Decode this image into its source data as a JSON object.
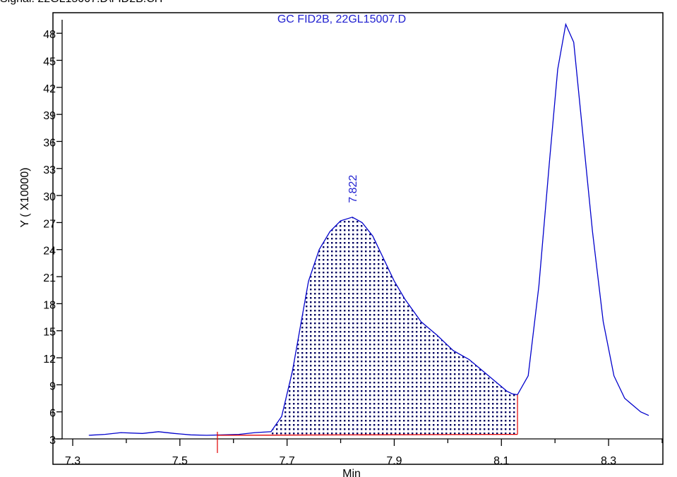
{
  "corner_text": "Signal: 22GL15007.D\\FID2B.CH",
  "chart_data": {
    "type": "line",
    "title": "GC FID2B, 22GL15007.D",
    "xlabel": "Min",
    "ylabel": "Y ( X10000)",
    "xlim": [
      7.3,
      8.4
    ],
    "ylim": [
      3,
      49.5
    ],
    "x_ticks": [
      7.3,
      7.5,
      7.7,
      7.9,
      8.1,
      8.3
    ],
    "x_tick_labels": [
      "7.3",
      "7.5",
      "7.7",
      "7.9",
      "8.1",
      "8.3"
    ],
    "y_ticks": [
      3,
      6,
      9,
      12,
      15,
      18,
      21,
      24,
      27,
      30,
      33,
      36,
      39,
      42,
      45,
      48
    ],
    "y_tick_labels": [
      "3",
      "6",
      "9",
      "12",
      "15",
      "18",
      "21",
      "24",
      "27",
      "30",
      "33",
      "36",
      "39",
      "42",
      "45",
      "48"
    ],
    "series": [
      {
        "x": [
          7.33,
          7.36,
          7.39,
          7.43,
          7.46,
          7.49,
          7.52,
          7.55,
          7.58,
          7.61,
          7.64,
          7.67,
          7.69,
          7.71,
          7.725,
          7.74,
          7.76,
          7.78,
          7.8,
          7.822,
          7.84,
          7.86,
          7.88,
          7.9,
          7.92,
          7.95,
          7.98,
          8.01,
          8.04,
          8.06,
          8.08,
          8.1,
          8.11,
          8.12,
          8.13,
          8.15,
          8.17,
          8.19,
          8.205,
          8.22,
          8.235,
          8.25,
          8.27,
          8.29,
          8.31,
          8.33,
          8.36,
          8.375
        ],
        "y": [
          3.4,
          3.5,
          3.7,
          3.6,
          3.8,
          3.6,
          3.45,
          3.4,
          3.45,
          3.5,
          3.7,
          3.8,
          5.5,
          10.5,
          15.5,
          20.5,
          24.0,
          26.0,
          27.2,
          27.6,
          27.0,
          25.5,
          23.0,
          20.5,
          18.5,
          16.0,
          14.5,
          12.8,
          11.8,
          10.8,
          9.8,
          8.8,
          8.3,
          8.0,
          7.9,
          10.0,
          20.0,
          34.0,
          44.0,
          49.0,
          47.0,
          38.0,
          26.0,
          16.0,
          10.0,
          7.5,
          6.0,
          5.6
        ]
      }
    ],
    "integrated_peak": {
      "label": "7.822",
      "apex_time": 7.822,
      "start_time": 7.67,
      "end_time": 8.13,
      "baseline_start": [
        7.57,
        3.4
      ],
      "baseline_end": [
        8.13,
        3.5
      ]
    },
    "colors": {
      "trace": "#0000cc",
      "baseline": "#e00000",
      "fill_dots": "#000060",
      "label": "#2020d0"
    }
  }
}
